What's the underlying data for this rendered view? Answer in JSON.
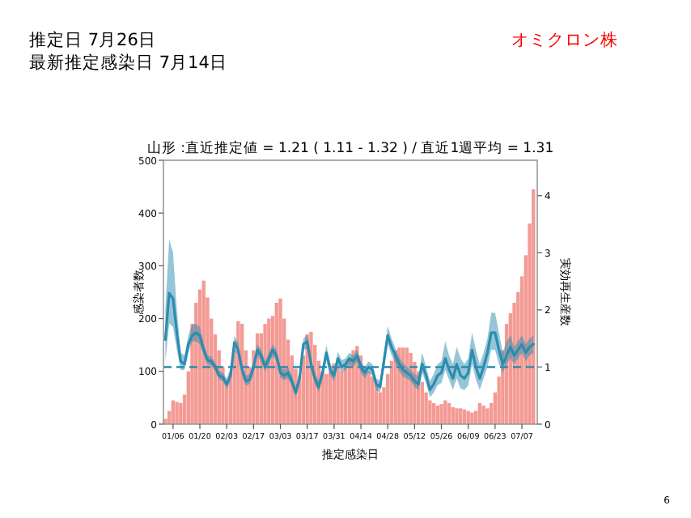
{
  "chart_data": {
    "type": "bar",
    "title": "山形 :直近推定値 = 1.21 ( 1.11 - 1.32 ) / 直近1週平均 = 1.31",
    "subtitle": "推定日  7月26日",
    "xlabel": "推定感染日",
    "ylabel": "感染者数",
    "y2label": "実効再生産数",
    "annotations": [
      {
        "text": "最新推定感染日  7月14日"
      },
      {
        "text": "オミクロン株"
      },
      {
        "text": "6"
      }
    ],
    "x": [
      "--01-02",
      "--01-04",
      "--01-06",
      "--01-08",
      "--01-10",
      "--01-12",
      "--01-14",
      "--01-16",
      "--01-18",
      "--01-20",
      "--01-22",
      "--01-24",
      "--01-26",
      "--01-28",
      "--01-30",
      "--02-01",
      "--02-03",
      "--02-05",
      "--02-07",
      "--02-09",
      "--02-11",
      "--02-13",
      "--02-15",
      "--02-17",
      "--02-19",
      "--02-21",
      "--02-23",
      "--02-25",
      "--02-27",
      "--03-01",
      "--03-03",
      "--03-05",
      "--03-07",
      "--03-09",
      "--03-11",
      "--03-13",
      "--03-15",
      "--03-17",
      "--03-19",
      "--03-21",
      "--03-23",
      "--03-25",
      "--03-27",
      "--03-29",
      "--03-31",
      "--04-02",
      "--04-04",
      "--04-06",
      "--04-08",
      "--04-10",
      "--04-12",
      "--04-14",
      "--04-16",
      "--04-18",
      "--04-20",
      "--04-22",
      "--04-24",
      "--04-26",
      "--04-28",
      "--04-30",
      "--05-02",
      "--05-04",
      "--05-06",
      "--05-08",
      "--05-10",
      "--05-12",
      "--05-14",
      "--05-16",
      "--05-18",
      "--05-20",
      "--05-22",
      "--05-24",
      "--05-26",
      "--05-28",
      "--05-30",
      "--06-01",
      "--06-03",
      "--06-05",
      "--06-07",
      "--06-09",
      "--06-11",
      "--06-13",
      "--06-15",
      "--06-17",
      "--06-19",
      "--06-21",
      "--06-23",
      "--06-25",
      "--06-27",
      "--06-29",
      "--07-01",
      "--07-03",
      "--07-05",
      "--07-07",
      "--07-09",
      "--07-11",
      "--07-13"
    ],
    "series": [
      {
        "axis": "y",
        "color": "#f49a94",
        "values": [
          10,
          25,
          45,
          42,
          40,
          56,
          100,
          190,
          230,
          255,
          272,
          240,
          200,
          170,
          140,
          108,
          78,
          98,
          140,
          195,
          190,
          140,
          108,
          140,
          172,
          172,
          190,
          200,
          205,
          230,
          238,
          200,
          160,
          130,
          105,
          90,
          130,
          170,
          175,
          150,
          120,
          100,
          95,
          100,
          115,
          110,
          100,
          115,
          125,
          140,
          148,
          130,
          110,
          100,
          90,
          75,
          60,
          70,
          95,
          120,
          140,
          145,
          145,
          145,
          135,
          118,
          100,
          80,
          60,
          45,
          40,
          35,
          38,
          45,
          40,
          32,
          30,
          30,
          28,
          25,
          22,
          25,
          40,
          35,
          30,
          40,
          60,
          90,
          140,
          190,
          210,
          230,
          250,
          280,
          320,
          380,
          445
        ]
      },
      {
        "type": "line",
        "axis": "y2",
        "color": "#2b8cb0",
        "values": [
          1.48,
          2.29,
          2.2,
          1.6,
          1.1,
          1.05,
          1.4,
          1.55,
          1.6,
          1.55,
          1.3,
          1.12,
          1.1,
          1.0,
          0.85,
          0.82,
          0.7,
          0.85,
          1.43,
          1.3,
          0.95,
          0.75,
          0.78,
          1.0,
          1.3,
          1.2,
          1.0,
          1.15,
          1.3,
          1.2,
          0.9,
          0.85,
          0.9,
          0.75,
          0.55,
          0.8,
          1.4,
          1.45,
          1.05,
          0.8,
          0.65,
          0.9,
          1.25,
          0.95,
          0.85,
          1.15,
          1.0,
          1.05,
          1.15,
          1.1,
          1.2,
          1.0,
          0.9,
          1.0,
          0.95,
          0.7,
          0.65,
          1.1,
          1.55,
          1.35,
          1.2,
          1.05,
          0.95,
          0.9,
          0.85,
          0.75,
          0.7,
          1.05,
          0.85,
          0.6,
          0.7,
          0.85,
          0.9,
          1.15,
          0.95,
          0.8,
          1.05,
          0.85,
          0.8,
          0.9,
          1.3,
          1.0,
          0.8,
          1.0,
          1.25,
          1.6,
          1.6,
          1.3,
          1.05,
          1.2,
          1.35,
          1.2,
          1.3,
          1.4,
          1.25,
          1.35,
          1.4
        ],
        "upper": [
          2.0,
          3.24,
          3.0,
          2.0,
          1.25,
          1.2,
          1.55,
          1.75,
          1.75,
          1.7,
          1.4,
          1.2,
          1.18,
          1.08,
          0.93,
          0.9,
          0.8,
          0.95,
          1.55,
          1.42,
          1.05,
          0.85,
          0.88,
          1.1,
          1.4,
          1.3,
          1.1,
          1.25,
          1.4,
          1.3,
          1.0,
          0.95,
          1.0,
          0.85,
          0.65,
          0.9,
          1.5,
          1.57,
          1.15,
          0.9,
          0.76,
          1.0,
          1.38,
          1.07,
          0.95,
          1.27,
          1.12,
          1.15,
          1.25,
          1.2,
          1.3,
          1.1,
          1.0,
          1.1,
          1.05,
          0.8,
          0.76,
          1.25,
          1.72,
          1.5,
          1.33,
          1.17,
          1.07,
          1.0,
          0.95,
          0.87,
          0.85,
          1.25,
          1.0,
          0.75,
          0.88,
          1.05,
          1.1,
          1.45,
          1.2,
          1.05,
          1.35,
          1.15,
          1.05,
          1.15,
          1.6,
          1.3,
          1.05,
          1.25,
          1.5,
          1.95,
          1.95,
          1.6,
          1.25,
          1.45,
          1.55,
          1.35,
          1.45,
          1.55,
          1.4,
          1.5,
          1.55
        ],
        "lower": [
          1.1,
          1.76,
          1.7,
          1.3,
          0.95,
          0.95,
          1.25,
          1.45,
          1.45,
          1.4,
          1.2,
          1.05,
          1.02,
          0.93,
          0.78,
          0.75,
          0.62,
          0.75,
          1.3,
          1.2,
          0.86,
          0.67,
          0.7,
          0.9,
          1.2,
          1.1,
          0.92,
          1.05,
          1.2,
          1.1,
          0.82,
          0.77,
          0.8,
          0.66,
          0.47,
          0.7,
          1.3,
          1.33,
          0.95,
          0.7,
          0.56,
          0.8,
          1.12,
          0.85,
          0.75,
          1.03,
          0.9,
          0.95,
          1.05,
          1.0,
          1.1,
          0.9,
          0.8,
          0.9,
          0.85,
          0.6,
          0.55,
          0.95,
          1.4,
          1.2,
          1.07,
          0.93,
          0.83,
          0.8,
          0.75,
          0.65,
          0.6,
          0.9,
          0.72,
          0.47,
          0.55,
          0.68,
          0.72,
          0.95,
          0.78,
          0.6,
          0.8,
          0.62,
          0.6,
          0.68,
          1.05,
          0.78,
          0.6,
          0.8,
          1.0,
          1.3,
          1.3,
          1.05,
          0.9,
          1.05,
          1.15,
          1.05,
          1.15,
          1.25,
          1.1,
          1.2,
          1.25
        ]
      }
    ],
    "xlim": [
      "--01-01",
      "--07-15"
    ],
    "xticks": [
      {
        "value": "--01-06",
        "label": "01/06"
      },
      {
        "value": "--01-20",
        "label": "01/20"
      },
      {
        "value": "--02-03",
        "label": "02/03"
      },
      {
        "value": "--02-17",
        "label": "02/17"
      },
      {
        "value": "--03-03",
        "label": "03/03"
      },
      {
        "value": "--03-17",
        "label": "03/17"
      },
      {
        "value": "--03-31",
        "label": "03/31"
      },
      {
        "value": "--04-14",
        "label": "04/14"
      },
      {
        "value": "--04-28",
        "label": "04/28"
      },
      {
        "value": "--05-12",
        "label": "05/12"
      },
      {
        "value": "--05-26",
        "label": "05/26"
      },
      {
        "value": "--06-09",
        "label": "06/09"
      },
      {
        "value": "--06-23",
        "label": "06/23"
      },
      {
        "value": "--07-07",
        "label": "07/07"
      }
    ],
    "ylim": [
      0,
      500
    ],
    "yticks": [
      0,
      100,
      200,
      300,
      400,
      500
    ],
    "y2lim": [
      0,
      4.62
    ],
    "y2ticks": [
      0,
      1,
      2,
      3,
      4
    ],
    "ref_lines": [
      {
        "axis": "y2",
        "value": 1,
        "color": "#2b8cb0",
        "line_style": "dashed"
      }
    ]
  }
}
